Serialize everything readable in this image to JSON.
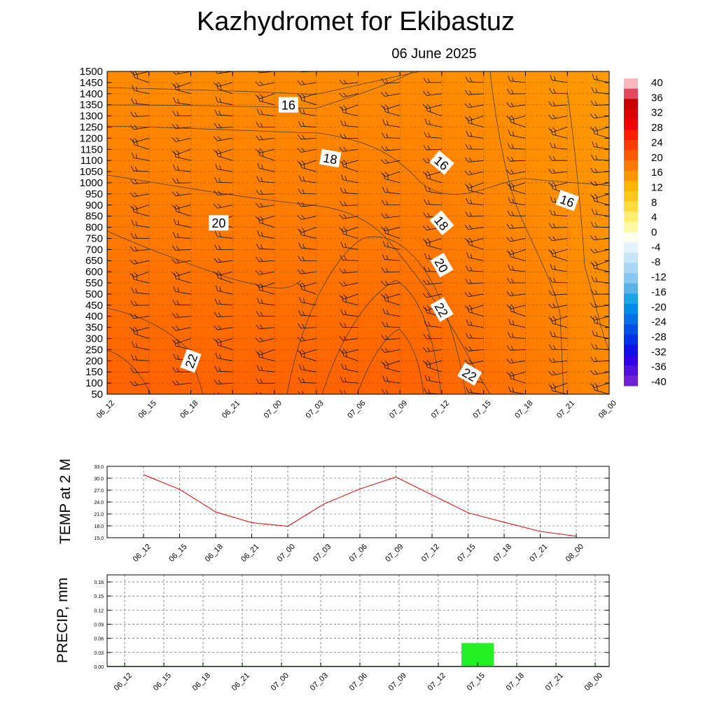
{
  "header": {
    "title": "Kazhydromet  for Ekibastuz",
    "date": "06 June 2025"
  },
  "chart_data": [
    {
      "type": "heatmap",
      "title": "",
      "xlabel": "",
      "ylabel": "",
      "x_ticks": [
        "06_12",
        "06_15",
        "06_18",
        "06_21",
        "07_00",
        "07_03",
        "07_06",
        "07_09",
        "07_12",
        "07_15",
        "07_18",
        "07_21",
        "08_00"
      ],
      "y_ticks": [
        50,
        100,
        150,
        200,
        250,
        300,
        350,
        400,
        450,
        500,
        550,
        600,
        650,
        700,
        750,
        800,
        850,
        900,
        950,
        1000,
        1050,
        1100,
        1150,
        1200,
        1250,
        1300,
        1350,
        1400,
        1450,
        1500
      ],
      "ylim": [
        50,
        1500
      ],
      "contour_labels": [
        {
          "label": "16",
          "x": "07_01",
          "y": 1350
        },
        {
          "label": "18",
          "x": "07_04",
          "y": 1110
        },
        {
          "label": "20",
          "x": "06_20",
          "y": 820
        },
        {
          "label": "22",
          "x": "06_18",
          "y": 200
        },
        {
          "label": "16",
          "x": "07_12",
          "y": 1090
        },
        {
          "label": "18",
          "x": "07_12",
          "y": 820
        },
        {
          "label": "20",
          "x": "07_12",
          "y": 630
        },
        {
          "label": "22",
          "x": "07_12",
          "y": 430
        },
        {
          "label": "22",
          "x": "07_14",
          "y": 140
        },
        {
          "label": "16",
          "x": "07_21",
          "y": 920
        }
      ],
      "colorbar": {
        "labels": [
          "40",
          "36",
          "32",
          "28",
          "24",
          "20",
          "16",
          "12",
          "8",
          "4",
          "0",
          "-4",
          "-8",
          "-12",
          "-16",
          "-20",
          "-24",
          "-28",
          "-32",
          "-36",
          "-40"
        ],
        "colors_top_to_bottom": [
          "#f9b9c0",
          "#e4475e",
          "#c80000",
          "#dc0000",
          "#f00000",
          "#ff1e00",
          "#ff3c00",
          "#ff5a00",
          "#ff7800",
          "#ff9600",
          "#ffb400",
          "#ffc818",
          "#ffdc3c",
          "#ffee70",
          "#fffaa0",
          "#fffff0",
          "#e4f2fb",
          "#c8e6f8",
          "#aad8f4",
          "#86c8ef",
          "#5ab4ea",
          "#1aa6e6",
          "#008ce8",
          "#0070e8",
          "#0050e8",
          "#0030e8",
          "#1010e8",
          "#3000e8",
          "#5010e0",
          "#7020d8"
        ]
      }
    },
    {
      "type": "line",
      "title": "",
      "xlabel": "",
      "ylabel": "TEMP at 2 M",
      "categories": [
        "06_12",
        "06_15",
        "06_18",
        "06_21",
        "07_00",
        "07_03",
        "07_06",
        "07_09",
        "07_12",
        "07_15",
        "07_18",
        "07_21",
        "08_00"
      ],
      "values": [
        30.9,
        27.2,
        21.5,
        18.8,
        17.9,
        23.5,
        27.3,
        30.3,
        25.8,
        21.3,
        18.9,
        16.6,
        15.4
      ],
      "y_ticks": [
        "15.0",
        "18.0",
        "21.0",
        "24.0",
        "27.0",
        "30.0",
        "33.0"
      ],
      "ylim": [
        15,
        33
      ],
      "color": "#e00000",
      "grid": true
    },
    {
      "type": "bar",
      "title": "",
      "xlabel": "",
      "ylabel": "PRECIP, mm",
      "categories": [
        "06_12",
        "06_15",
        "06_18",
        "06_21",
        "07_00",
        "07_03",
        "07_06",
        "07_09",
        "07_12",
        "07_15",
        "07_18",
        "07_21",
        "08_00"
      ],
      "values": [
        0,
        0,
        0,
        0,
        0,
        0,
        0,
        0,
        0,
        0.05,
        0,
        0,
        0
      ],
      "y_ticks": [
        "0.00",
        "0.03",
        "0.06",
        "0.09",
        "0.12",
        "0.15",
        "0.18"
      ],
      "ylim": [
        0,
        0.195
      ],
      "color": "#22f022",
      "grid": true
    }
  ]
}
